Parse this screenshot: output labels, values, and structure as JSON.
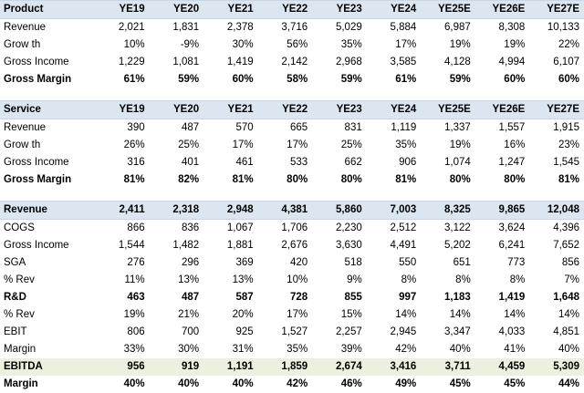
{
  "sections": [
    {
      "rows": [
        {
          "label": "Product",
          "style": "hdr",
          "values": [
            "YE19",
            "YE20",
            "YE21",
            "YE22",
            "YE23",
            "YE24",
            "YE25E",
            "YE26E",
            "YE27E"
          ]
        },
        {
          "label": "Revenue",
          "style": "",
          "values": [
            "2,021",
            "1,831",
            "2,378",
            "3,716",
            "5,029",
            "5,884",
            "6,987",
            "8,308",
            "10,133"
          ]
        },
        {
          "label": "Grow th",
          "style": "",
          "values": [
            "10%",
            "-9%",
            "30%",
            "56%",
            "35%",
            "17%",
            "19%",
            "19%",
            "22%"
          ]
        },
        {
          "label": "Gross Income",
          "style": "",
          "values": [
            "1,229",
            "1,081",
            "1,419",
            "2,142",
            "2,968",
            "3,585",
            "4,128",
            "4,994",
            "6,107"
          ]
        },
        {
          "label": "Gross Margin",
          "style": "bold",
          "values": [
            "61%",
            "59%",
            "60%",
            "58%",
            "59%",
            "61%",
            "59%",
            "60%",
            "60%"
          ]
        }
      ]
    },
    {
      "rows": [
        {
          "label": "Service",
          "style": "hdr",
          "values": [
            "YE19",
            "YE20",
            "YE21",
            "YE22",
            "YE23",
            "YE24",
            "YE25E",
            "YE26E",
            "YE27E"
          ]
        },
        {
          "label": "Revenue",
          "style": "",
          "values": [
            "390",
            "487",
            "570",
            "665",
            "831",
            "1,119",
            "1,337",
            "1,557",
            "1,915"
          ]
        },
        {
          "label": "Grow th",
          "style": "",
          "values": [
            "26%",
            "25%",
            "17%",
            "17%",
            "25%",
            "35%",
            "19%",
            "16%",
            "23%"
          ]
        },
        {
          "label": "Gross Income",
          "style": "",
          "values": [
            "316",
            "401",
            "461",
            "533",
            "662",
            "906",
            "1,074",
            "1,247",
            "1,545"
          ]
        },
        {
          "label": "Gross Margin",
          "style": "bold",
          "values": [
            "81%",
            "82%",
            "81%",
            "80%",
            "80%",
            "81%",
            "80%",
            "80%",
            "81%"
          ]
        }
      ]
    },
    {
      "rows": [
        {
          "label": "Revenue",
          "style": "hdr",
          "values": [
            "2,411",
            "2,318",
            "2,948",
            "4,381",
            "5,860",
            "7,003",
            "8,325",
            "9,865",
            "12,048"
          ]
        },
        {
          "label": "COGS",
          "style": "",
          "values": [
            "866",
            "836",
            "1,067",
            "1,706",
            "2,230",
            "2,512",
            "3,122",
            "3,624",
            "4,396"
          ]
        },
        {
          "label": "Gross Income",
          "style": "",
          "values": [
            "1,544",
            "1,482",
            "1,881",
            "2,676",
            "3,630",
            "4,491",
            "5,202",
            "6,241",
            "7,652"
          ]
        },
        {
          "label": "SGA",
          "style": "",
          "values": [
            "276",
            "296",
            "369",
            "420",
            "518",
            "550",
            "651",
            "773",
            "856"
          ]
        },
        {
          "label": "% Rev",
          "style": "",
          "values": [
            "11%",
            "13%",
            "13%",
            "10%",
            "9%",
            "8%",
            "8%",
            "8%",
            "7%"
          ]
        },
        {
          "label": "R&D",
          "style": "bold",
          "values": [
            "463",
            "487",
            "587",
            "728",
            "855",
            "997",
            "1,183",
            "1,419",
            "1,648"
          ]
        },
        {
          "label": "% Rev",
          "style": "",
          "values": [
            "19%",
            "21%",
            "20%",
            "17%",
            "15%",
            "14%",
            "14%",
            "14%",
            "14%"
          ]
        },
        {
          "label": "EBIT",
          "style": "",
          "values": [
            "806",
            "700",
            "925",
            "1,527",
            "2,257",
            "2,945",
            "3,347",
            "4,033",
            "4,851"
          ]
        },
        {
          "label": "Margin",
          "style": "",
          "values": [
            "33%",
            "30%",
            "31%",
            "35%",
            "39%",
            "42%",
            "40%",
            "41%",
            "40%"
          ]
        },
        {
          "label": "EBITDA",
          "style": "green",
          "values": [
            "956",
            "919",
            "1,191",
            "1,859",
            "2,674",
            "3,416",
            "3,711",
            "4,459",
            "5,309"
          ]
        },
        {
          "label": "Margin",
          "style": "bold",
          "values": [
            "40%",
            "40%",
            "40%",
            "42%",
            "46%",
            "49%",
            "45%",
            "45%",
            "44%"
          ]
        }
      ]
    }
  ]
}
